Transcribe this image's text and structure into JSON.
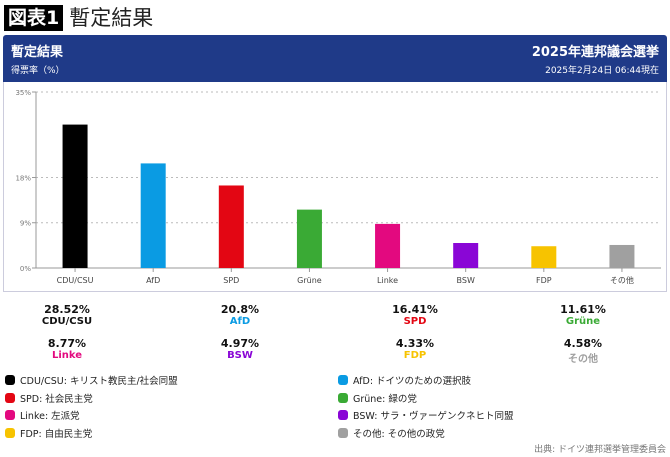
{
  "figure": {
    "badge": "図表1",
    "title": "暫定結果"
  },
  "header": {
    "title": "暫定結果",
    "subtitle": "得票率（%）",
    "election": "2025年連邦議会選挙",
    "timestamp": "2025年2月24日 06:44現在",
    "bg_color": "#1f3a88"
  },
  "chart_data": {
    "type": "bar",
    "categories": [
      "CDU/CSU",
      "AfD",
      "SPD",
      "Grüne",
      "Linke",
      "BSW",
      "FDP",
      "その他"
    ],
    "values": [
      28.52,
      20.8,
      16.41,
      11.61,
      8.77,
      4.97,
      4.33,
      4.58
    ],
    "value_labels": [
      "28.52%",
      "20.8%",
      "16.41%",
      "11.61%",
      "8.77%",
      "4.97%",
      "4.33%",
      "4.58%"
    ],
    "colors": [
      "#000000",
      "#0a9be3",
      "#e30613",
      "#3aaa35",
      "#e3097f",
      "#8a06d6",
      "#f7c300",
      "#a0a0a0"
    ],
    "label_colors": [
      "#111111",
      "#0a9be3",
      "#e30613",
      "#3aaa35",
      "#e3097f",
      "#8a06d6",
      "#f7c300",
      "#a0a0a0"
    ],
    "yticks": [
      0,
      9,
      18,
      35
    ],
    "ytick_labels": [
      "0%",
      "9%",
      "18%",
      "35%"
    ],
    "ylim": [
      0,
      35
    ],
    "grid": true,
    "legend_position": "bottom"
  },
  "legend": [
    {
      "label": "CDU/CSU: キリスト教民主/社会同盟",
      "color": "#000000"
    },
    {
      "label": "AfD: ドイツのための選択肢",
      "color": "#0a9be3"
    },
    {
      "label": "SPD: 社会民主党",
      "color": "#e30613"
    },
    {
      "label": "Grüne: 緑の党",
      "color": "#3aaa35"
    },
    {
      "label": "Linke: 左派党",
      "color": "#e3097f"
    },
    {
      "label": "BSW: サラ・ヴァーゲンクネヒト同盟",
      "color": "#8a06d6"
    },
    {
      "label": "FDP: 自由民主党",
      "color": "#f7c300"
    },
    {
      "label": "その他: その他の政党",
      "color": "#a0a0a0"
    }
  ],
  "source": "出典: ドイツ連邦選挙管理委員会"
}
